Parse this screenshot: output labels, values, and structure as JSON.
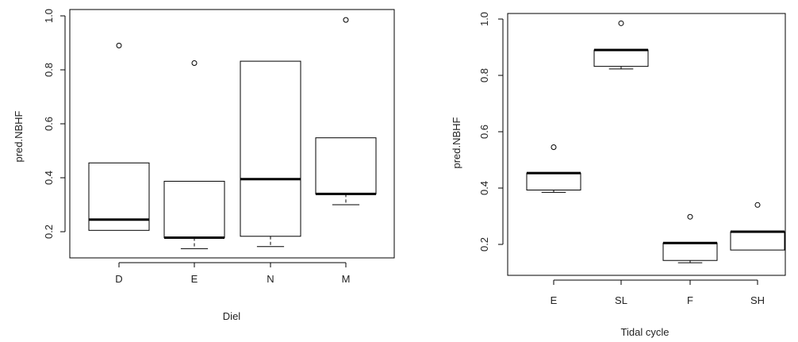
{
  "chart_data": [
    {
      "type": "box",
      "title": "",
      "xlabel": "Diel",
      "ylabel": "pred.NBHF",
      "ylim": [
        0.1,
        1.0
      ],
      "yticks": [
        "0.2",
        "0.4",
        "0.6",
        "0.8",
        "1.0"
      ],
      "yticks_values": [
        0.2,
        0.4,
        0.6,
        0.8,
        1.0
      ],
      "categories": [
        "D",
        "E",
        "N",
        "M"
      ],
      "boxes": [
        {
          "category": "D",
          "whisker_low": 0.205,
          "q1": 0.205,
          "median": 0.245,
          "q3": 0.455,
          "whisker_high": 0.455,
          "outliers": [
            0.89
          ]
        },
        {
          "category": "E",
          "whisker_low": 0.137,
          "q1": 0.178,
          "median": 0.178,
          "q3": 0.387,
          "whisker_high": 0.387,
          "outliers": [
            0.825
          ]
        },
        {
          "category": "N",
          "whisker_low": 0.145,
          "q1": 0.183,
          "median": 0.395,
          "q3": 0.832,
          "whisker_high": 0.832,
          "outliers": []
        },
        {
          "category": "M",
          "whisker_low": 0.3,
          "q1": 0.34,
          "median": 0.34,
          "q3": 0.548,
          "whisker_high": 0.548,
          "outliers": [
            0.985
          ]
        }
      ]
    },
    {
      "type": "box",
      "title": "",
      "xlabel": "Tidal cycle",
      "ylabel": "pred.NBHF",
      "ylim": [
        0.1,
        1.0
      ],
      "yticks": [
        "0.2",
        "0.4",
        "0.6",
        "0.8",
        "1.0"
      ],
      "yticks_values": [
        0.2,
        0.4,
        0.6,
        0.8,
        1.0
      ],
      "categories": [
        "E",
        "SL",
        "F",
        "SH"
      ],
      "boxes": [
        {
          "category": "E",
          "whisker_low": 0.385,
          "q1": 0.393,
          "median": 0.453,
          "q3": 0.453,
          "whisker_high": 0.453,
          "outliers": [
            0.545
          ]
        },
        {
          "category": "SL",
          "whisker_low": 0.823,
          "q1": 0.832,
          "median": 0.89,
          "q3": 0.89,
          "whisker_high": 0.89,
          "outliers": [
            0.985
          ]
        },
        {
          "category": "F",
          "whisker_low": 0.135,
          "q1": 0.143,
          "median": 0.205,
          "q3": 0.205,
          "whisker_high": 0.205,
          "outliers": [
            0.298
          ]
        },
        {
          "category": "SH",
          "whisker_low": 0.18,
          "q1": 0.18,
          "median": 0.245,
          "q3": 0.245,
          "whisker_high": 0.245,
          "outliers": [
            0.34
          ]
        }
      ]
    }
  ]
}
